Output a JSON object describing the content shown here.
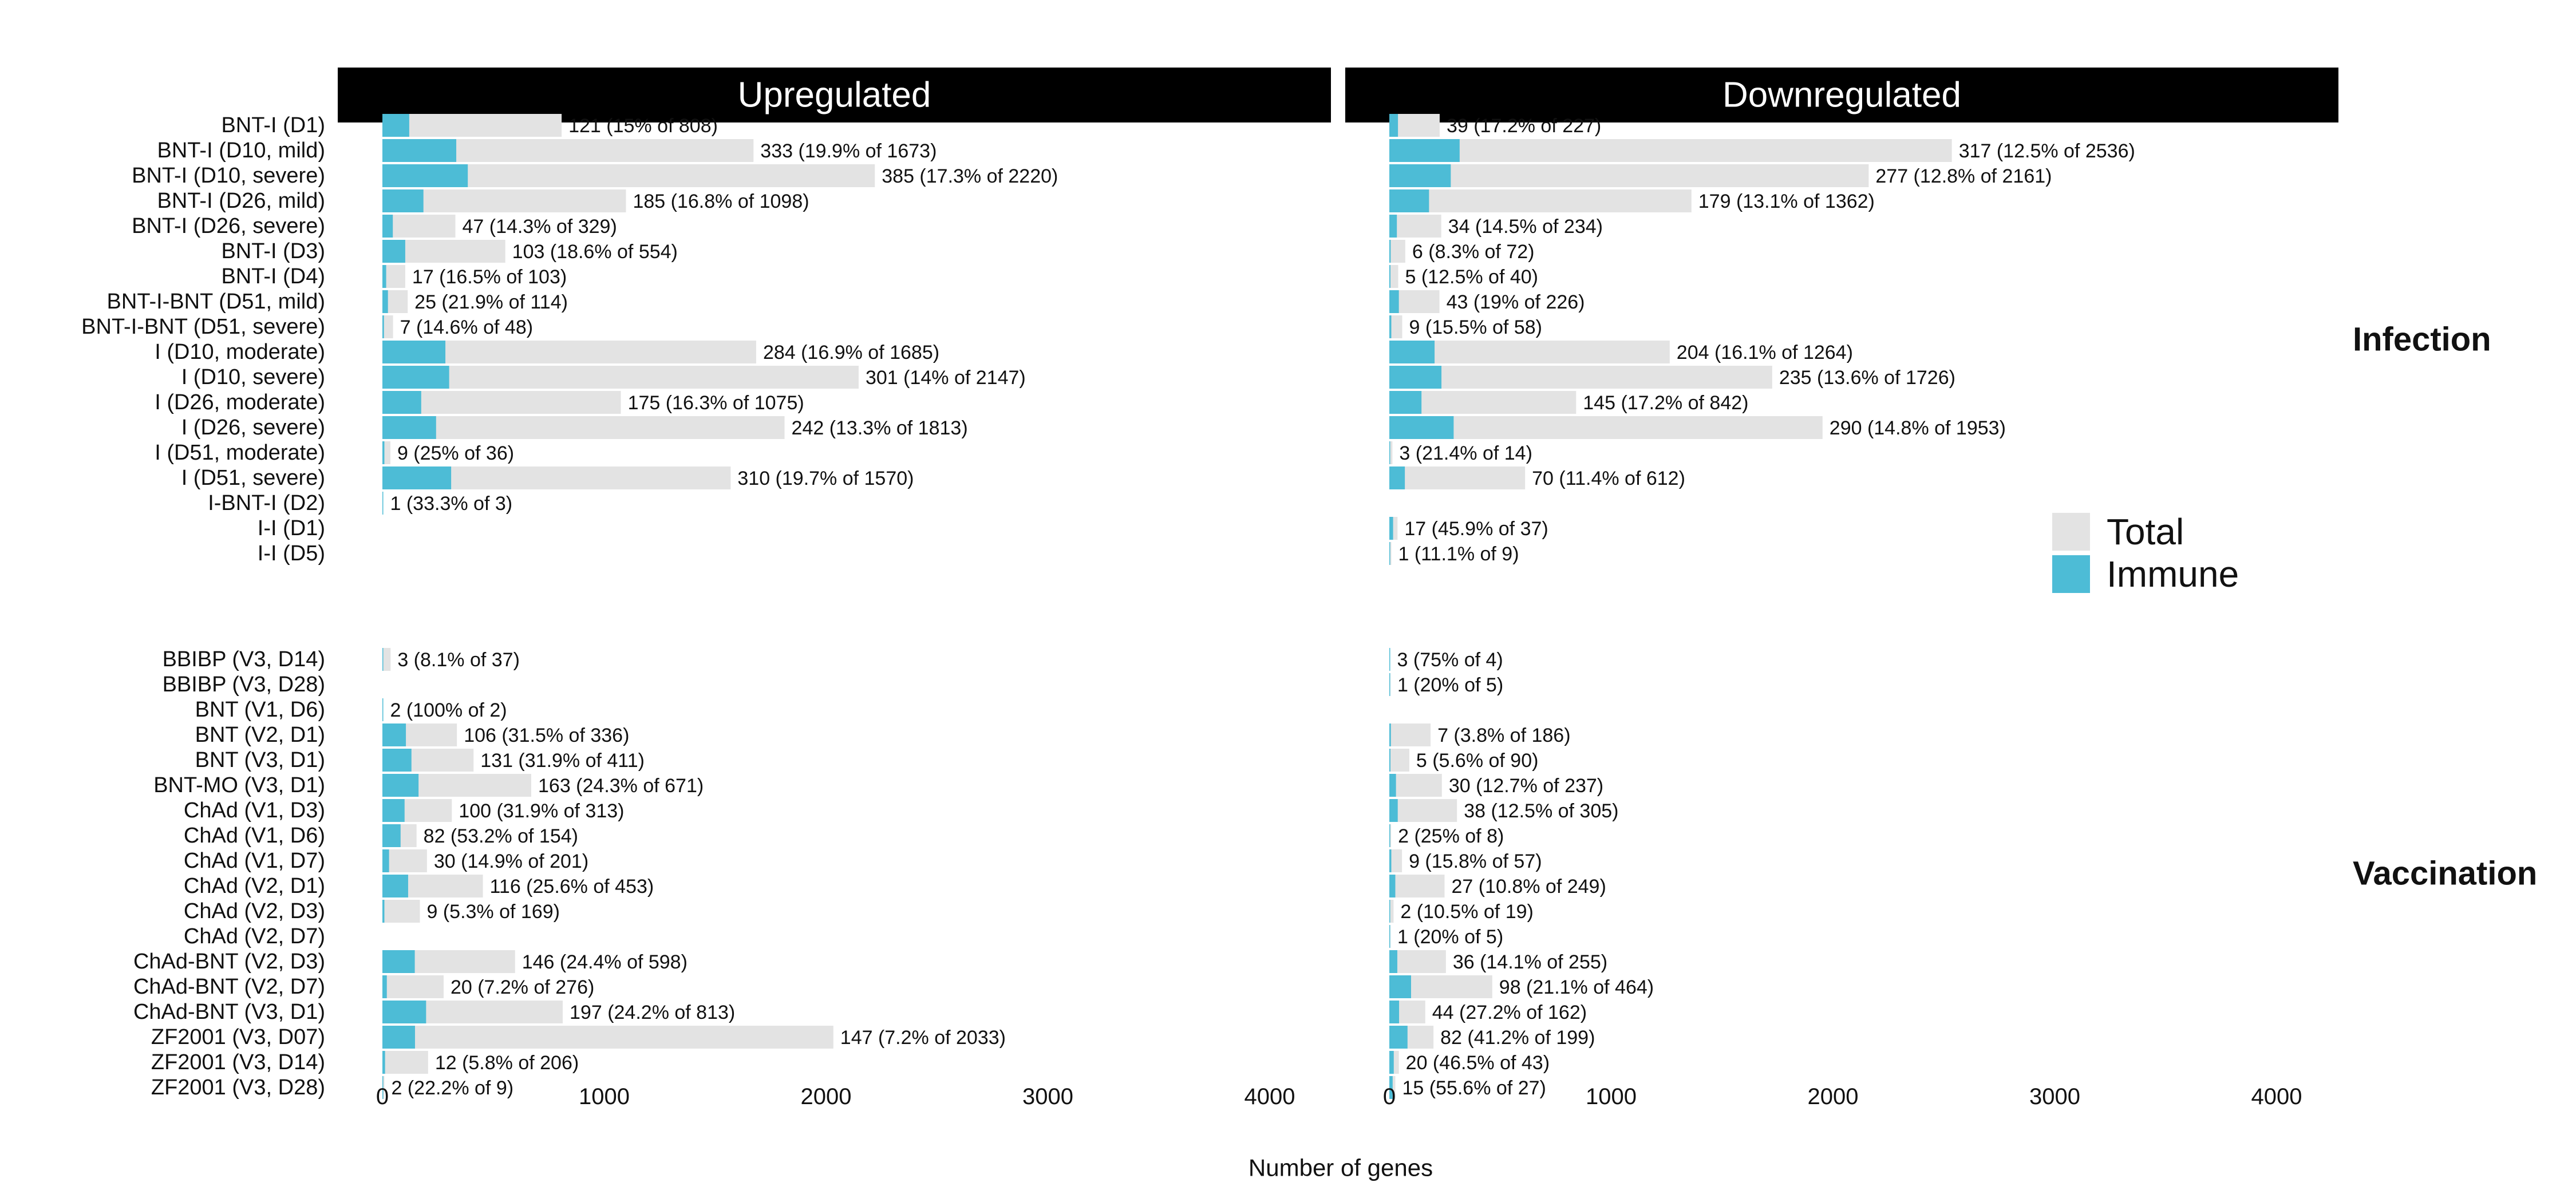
{
  "chart_data": {
    "type": "bar",
    "orientation": "horizontal",
    "xlabel": "Number of genes",
    "xticks": [
      0,
      1000,
      2000,
      3000,
      4000
    ],
    "xlim": [
      0,
      4400
    ],
    "facets": [
      "Upregulated",
      "Downregulated"
    ],
    "groups": [
      {
        "name": "Infection",
        "categories": [
          "BNT-I (D1)",
          "BNT-I (D10, mild)",
          "BNT-I (D10, severe)",
          "BNT-I (D26, mild)",
          "BNT-I (D26, severe)",
          "BNT-I (D3)",
          "BNT-I (D4)",
          "BNT-I-BNT (D51, mild)",
          "BNT-I-BNT (D51, severe)",
          "I (D10, moderate)",
          "I (D10, severe)",
          "I (D26, moderate)",
          "I (D26, severe)",
          "I (D51, moderate)",
          "I (D51, severe)",
          "I-BNT-I (D2)",
          "I-I (D1)",
          "I-I (D5)"
        ]
      },
      {
        "name": "Vaccination",
        "categories": [
          "BBIBP (V3, D14)",
          "BBIBP (V3, D28)",
          "BNT (V1, D6)",
          "BNT (V2, D1)",
          "BNT (V3, D1)",
          "BNT-MO (V3, D1)",
          "ChAd (V1, D3)",
          "ChAd (V1, D6)",
          "ChAd (V1, D7)",
          "ChAd (V2, D1)",
          "ChAd (V2, D3)",
          "ChAd (V2, D7)",
          "ChAd-BNT (V2, D3)",
          "ChAd-BNT (V2, D7)",
          "ChAd-BNT (V3, D1)",
          "ZF2001 (V3, D07)",
          "ZF2001 (V3, D14)",
          "ZF2001 (V3, D28)"
        ]
      }
    ],
    "series": [
      {
        "name": "Total",
        "color": "#e3e3e3",
        "upregulated": [
          808,
          1673,
          2220,
          1098,
          329,
          554,
          103,
          114,
          48,
          1685,
          2147,
          1075,
          1813,
          36,
          1570,
          3,
          null,
          null,
          37,
          null,
          2,
          336,
          411,
          671,
          313,
          154,
          201,
          453,
          169,
          null,
          598,
          276,
          813,
          2033,
          206,
          9
        ],
        "downregulated": [
          227,
          2536,
          2161,
          1362,
          234,
          72,
          40,
          226,
          58,
          1264,
          1726,
          842,
          1953,
          14,
          612,
          null,
          37,
          9,
          4,
          5,
          null,
          186,
          90,
          237,
          305,
          8,
          57,
          249,
          19,
          5,
          255,
          464,
          162,
          199,
          43,
          27
        ]
      },
      {
        "name": "Immune",
        "color": "#4dbcd6",
        "upregulated": [
          121,
          333,
          385,
          185,
          47,
          103,
          17,
          25,
          7,
          284,
          301,
          175,
          242,
          9,
          310,
          1,
          null,
          null,
          3,
          null,
          2,
          106,
          131,
          163,
          100,
          82,
          30,
          116,
          9,
          null,
          146,
          20,
          197,
          147,
          12,
          2
        ],
        "downregulated": [
          39,
          317,
          277,
          179,
          34,
          6,
          5,
          43,
          9,
          204,
          235,
          145,
          290,
          3,
          70,
          null,
          17,
          1,
          3,
          1,
          null,
          7,
          5,
          30,
          38,
          2,
          9,
          27,
          2,
          1,
          36,
          98,
          44,
          82,
          20,
          15
        ]
      }
    ],
    "bar_labels": {
      "upregulated": [
        "121 (15% of 808)",
        "333 (19.9% of 1673)",
        "385 (17.3% of 2220)",
        "185 (16.8% of 1098)",
        "47 (14.3% of 329)",
        "103 (18.6% of 554)",
        "17 (16.5% of 103)",
        "25 (21.9% of 114)",
        "7 (14.6% of 48)",
        "284 (16.9% of 1685)",
        "301 (14% of 2147)",
        "175 (16.3% of 1075)",
        "242 (13.3% of 1813)",
        "9 (25% of 36)",
        "310 (19.7% of 1570)",
        "1 (33.3% of 3)",
        "",
        "",
        "3 (8.1% of 37)",
        "",
        "2 (100% of 2)",
        "106 (31.5% of 336)",
        "131 (31.9% of 411)",
        "163 (24.3% of 671)",
        "100 (31.9% of 313)",
        "82 (53.2% of 154)",
        "30 (14.9% of 201)",
        "116 (25.6% of 453)",
        "9 (5.3% of 169)",
        "",
        "146 (24.4% of 598)",
        "20 (7.2% of 276)",
        "197 (24.2% of 813)",
        "147 (7.2% of 2033)",
        "12 (5.8% of 206)",
        "2 (22.2% of 9)"
      ],
      "downregulated": [
        "39 (17.2% of 227)",
        "317 (12.5% of 2536)",
        "277 (12.8% of 2161)",
        "179 (13.1% of 1362)",
        "34 (14.5% of 234)",
        "6 (8.3% of 72)",
        "5 (12.5% of 40)",
        "43 (19% of 226)",
        "9 (15.5% of 58)",
        "204 (16.1% of 1264)",
        "235 (13.6% of 1726)",
        "145 (17.2% of 842)",
        "290 (14.8% of 1953)",
        "3 (21.4% of 14)",
        "70 (11.4% of 612)",
        "",
        "17 (45.9% of 37)",
        "1 (11.1% of 9)",
        "3 (75% of 4)",
        "1 (20% of 5)",
        "",
        "7 (3.8% of 186)",
        "5 (5.6% of 90)",
        "30 (12.7% of 237)",
        "38 (12.5% of 305)",
        "2 (25% of 8)",
        "9 (15.8% of 57)",
        "27 (10.8% of 249)",
        "2 (10.5% of 19)",
        "1 (20% of 5)",
        "36 (14.1% of 255)",
        "98 (21.1% of 464)",
        "44 (27.2% of 162)",
        "82 (41.2% of 199)",
        "20 (46.5% of 43)",
        "15 (55.6% of 27)"
      ]
    },
    "legend": {
      "entries": [
        "Total",
        "Immune"
      ],
      "placement": "right"
    },
    "grid": false
  }
}
